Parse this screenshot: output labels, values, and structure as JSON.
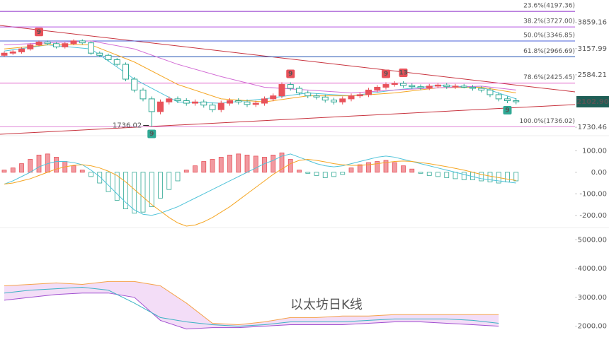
{
  "chart_data": [
    {
      "type": "candlestick",
      "log_scale": true,
      "ylim": [
        1640,
        4580
      ],
      "yticks": [
        3859.16,
        3157.99,
        2584.21,
        1730.46
      ],
      "up_color": "#e8525a",
      "down_color": "#2fa894",
      "open": [
        3000,
        3050,
        3080,
        3150,
        3250,
        3320,
        3280,
        3200,
        3280,
        3350,
        3300,
        3050,
        3000,
        2900,
        2800,
        2500,
        2300,
        2150,
        1950,
        2100,
        2150,
        2120,
        2080,
        2100,
        2050,
        1980,
        2080,
        2120,
        2100,
        2060,
        2080,
        2150,
        2200,
        2400,
        2330,
        2250,
        2200,
        2180,
        2130,
        2100,
        2150,
        2200,
        2220,
        2300,
        2350,
        2400,
        2420,
        2380,
        2360,
        2340,
        2370,
        2390,
        2360,
        2370,
        2350,
        2330,
        2300,
        2220,
        2150,
        2120
      ],
      "high": [
        3090,
        3120,
        3190,
        3290,
        3360,
        3360,
        3320,
        3320,
        3390,
        3390,
        3340,
        3090,
        3040,
        2940,
        2840,
        2540,
        2340,
        2190,
        2140,
        2190,
        2190,
        2160,
        2140,
        2140,
        2090,
        2120,
        2160,
        2160,
        2140,
        2120,
        2190,
        2240,
        2440,
        2440,
        2370,
        2290,
        2240,
        2220,
        2170,
        2190,
        2240,
        2260,
        2340,
        2390,
        2440,
        2460,
        2460,
        2420,
        2400,
        2410,
        2430,
        2430,
        2410,
        2410,
        2390,
        2370,
        2340,
        2260,
        2190,
        2160
      ],
      "low": [
        2960,
        3010,
        3040,
        3110,
        3210,
        3240,
        3160,
        3160,
        3240,
        3260,
        3010,
        2960,
        2860,
        2760,
        2460,
        2260,
        2110,
        1736.02,
        1910,
        2060,
        2080,
        2040,
        2040,
        2010,
        1940,
        1940,
        2040,
        2060,
        2020,
        2020,
        2040,
        2110,
        2160,
        2290,
        2210,
        2160,
        2140,
        2090,
        2060,
        2060,
        2110,
        2160,
        2180,
        2260,
        2310,
        2360,
        2340,
        2320,
        2300,
        2300,
        2330,
        2320,
        2320,
        2330,
        2290,
        2260,
        2180,
        2110,
        2080,
        2062.9
      ],
      "close": [
        3050,
        3080,
        3150,
        3250,
        3320,
        3280,
        3200,
        3280,
        3350,
        3300,
        3050,
        3000,
        2900,
        2800,
        2500,
        2300,
        2150,
        1950,
        2100,
        2150,
        2120,
        2080,
        2100,
        2050,
        1980,
        2080,
        2120,
        2100,
        2060,
        2080,
        2150,
        2200,
        2400,
        2330,
        2250,
        2200,
        2180,
        2130,
        2100,
        2150,
        2200,
        2220,
        2300,
        2350,
        2400,
        2420,
        2380,
        2360,
        2340,
        2370,
        2390,
        2360,
        2370,
        2350,
        2330,
        2300,
        2220,
        2150,
        2120,
        2102.9
      ],
      "lines": [
        {
          "color": "#4fc3d9",
          "x": [
            0,
            5,
            10,
            15,
            20,
            25,
            30,
            35,
            40,
            45,
            50,
            55,
            59
          ],
          "values": [
            3100,
            3250,
            3150,
            2500,
            2100,
            2080,
            2150,
            2250,
            2200,
            2300,
            2380,
            2350,
            2150
          ]
        },
        {
          "color": "#f5a623",
          "x": [
            0,
            5,
            10,
            15,
            20,
            25,
            30,
            35,
            40,
            45,
            50,
            55,
            59
          ],
          "values": [
            3150,
            3250,
            3250,
            2850,
            2400,
            2150,
            2100,
            2200,
            2200,
            2250,
            2340,
            2350,
            2250
          ]
        },
        {
          "color": "#d36fd6",
          "x": [
            0,
            5,
            10,
            15,
            20,
            25,
            30,
            35,
            40,
            45,
            50,
            55,
            59
          ],
          "values": [
            3250,
            3300,
            3350,
            3150,
            2800,
            2550,
            2350,
            2300,
            2250,
            2300,
            2340,
            2370,
            2300
          ]
        }
      ],
      "fib_levels": [
        {
          "value": 4197.36,
          "label": "23.6%(4197.36)",
          "color": "#8e2cc9"
        },
        {
          "value": 3727,
          "label": "38.2%(3727.00)",
          "color": "#b04fe0"
        },
        {
          "value": 3346.85,
          "label": "50.0%(3346.85)",
          "color": "#4a5fd8"
        },
        {
          "value": 2966.69,
          "label": "61.8%(2966.69)",
          "color": "#1f4fb0"
        },
        {
          "value": 2425.45,
          "label": "78.6%(2425.45)",
          "color": "#e060c8"
        },
        {
          "value": 1736.02,
          "label": "100.0%(1736.02)",
          "color": "#e08ad8"
        }
      ],
      "signals": [
        {
          "index": 4,
          "text": "9",
          "position": "above"
        },
        {
          "index": 33,
          "text": "9",
          "position": "above"
        },
        {
          "index": 44,
          "text": "9",
          "position": "above"
        },
        {
          "index": 46,
          "text": "13",
          "position": "above"
        },
        {
          "index": 17,
          "text": "9",
          "position": "below"
        },
        {
          "index": 58,
          "text": "9",
          "position": "below"
        }
      ],
      "low_annotation": "1736.02",
      "last_price": {
        "value": 2102.9,
        "label": "2102.90"
      }
    },
    {
      "type": "macd",
      "ylim": [
        -250,
        160
      ],
      "yticks": [
        {
          "value": 100,
          "label": "100.00"
        },
        {
          "value": 0,
          "label": "0.00"
        },
        {
          "value": -100,
          "label": "-100.00"
        },
        {
          "value": -200,
          "label": "-200.00"
        }
      ],
      "histogram": [
        10,
        20,
        40,
        60,
        80,
        85,
        70,
        50,
        30,
        10,
        -20,
        -50,
        -90,
        -130,
        -170,
        -190,
        -185,
        -160,
        -120,
        -80,
        -40,
        10,
        30,
        50,
        60,
        70,
        80,
        85,
        80,
        75,
        70,
        80,
        90,
        60,
        10,
        -5,
        -15,
        -25,
        -20,
        -10,
        20,
        35,
        45,
        50,
        55,
        45,
        30,
        15,
        -5,
        -15,
        -20,
        -25,
        -30,
        -35,
        -35,
        -40,
        -45,
        -50,
        -45,
        -40
      ],
      "series": [
        {
          "color": "#4fc3d9",
          "values": [
            -55,
            -40,
            -20,
            0,
            25,
            40,
            50,
            50,
            45,
            35,
            10,
            -20,
            -60,
            -100,
            -140,
            -175,
            -195,
            -200,
            -190,
            -175,
            -160,
            -140,
            -120,
            -100,
            -80,
            -60,
            -40,
            -20,
            0,
            20,
            40,
            55,
            75,
            85,
            70,
            55,
            40,
            30,
            25,
            30,
            40,
            50,
            60,
            70,
            75,
            70,
            60,
            50,
            40,
            30,
            20,
            10,
            0,
            -10,
            -20,
            -30,
            -35,
            -40,
            -45,
            -50
          ]
        },
        {
          "color": "#f5a623",
          "values": [
            -55,
            -50,
            -40,
            -30,
            -15,
            0,
            15,
            25,
            32,
            35,
            30,
            20,
            5,
            -15,
            -45,
            -80,
            -115,
            -150,
            -180,
            -210,
            -235,
            -250,
            -245,
            -230,
            -210,
            -185,
            -160,
            -130,
            -100,
            -70,
            -40,
            -10,
            15,
            40,
            55,
            60,
            55,
            48,
            40,
            35,
            32,
            32,
            35,
            40,
            45,
            50,
            52,
            50,
            45,
            40,
            33,
            26,
            18,
            10,
            0,
            -10,
            -18,
            -25,
            -32,
            -38
          ]
        }
      ]
    },
    {
      "type": "band",
      "ylim": [
        1450,
        5350
      ],
      "yticks": [
        {
          "value": 5000,
          "label": "5000.00"
        },
        {
          "value": 4000,
          "label": "4000.00"
        },
        {
          "value": 3000,
          "label": "3000.00"
        },
        {
          "value": 2000,
          "label": "2000.00"
        }
      ],
      "x": [
        0,
        3,
        6,
        9,
        12,
        15,
        18,
        21,
        24,
        27,
        30,
        33,
        36,
        39,
        42,
        45,
        48,
        51,
        54,
        57
      ],
      "upper": [
        3400,
        3450,
        3500,
        3450,
        3550,
        3550,
        3400,
        2800,
        2100,
        2050,
        2150,
        2300,
        2300,
        2350,
        2350,
        2400,
        2400,
        2400,
        2400,
        2400
      ],
      "lower": [
        2900,
        3000,
        3100,
        3150,
        3150,
        3000,
        2200,
        1900,
        1950,
        1950,
        2000,
        2050,
        2050,
        2050,
        2100,
        2150,
        2150,
        2100,
        2050,
        2000
      ],
      "line": [
        3150,
        3250,
        3300,
        3350,
        3250,
        2800,
        2300,
        2150,
        2050,
        2000,
        2050,
        2150,
        2150,
        2150,
        2200,
        2250,
        2250,
        2250,
        2200,
        2100
      ],
      "upper_color": "#f5a34a",
      "lower_color": "#a04fd0",
      "line_color": "#3bb3c3",
      "fill": "#f3ddf7",
      "annotation": "以太坊日K线"
    }
  ]
}
